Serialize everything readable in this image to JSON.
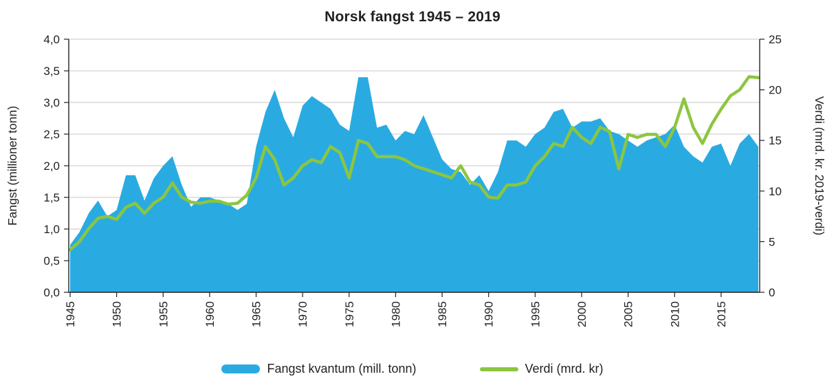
{
  "title": "Norsk fangst 1945 – 2019",
  "axes": {
    "left_label": "Fangst (millioner tonn)",
    "right_label": "Verdi (mrd. kr. 2019-verdi)"
  },
  "legend": {
    "fangst_label": "Fangst kvantum (mill. tonn)",
    "verdi_label": "Verdi (mrd. kr)"
  },
  "colors": {
    "area": "#29ABE2",
    "line": "#8CC63F",
    "grid": "#c7c7c7",
    "axis": "#231f20",
    "text": "#231f20"
  },
  "chart_data": {
    "type": "combo-area-line",
    "title": "Norsk fangst 1945 – 2019",
    "xlabel": "",
    "ylabel_left": "Fangst (millioner tonn)",
    "ylabel_right": "Verdi (mrd. kr. 2019-verdi)",
    "ylim_left": [
      0,
      4
    ],
    "ylim_right": [
      0,
      25
    ],
    "grid": true,
    "legend_position": "bottom",
    "x": [
      1945,
      1946,
      1947,
      1948,
      1949,
      1950,
      1951,
      1952,
      1953,
      1954,
      1955,
      1956,
      1957,
      1958,
      1959,
      1960,
      1961,
      1962,
      1963,
      1964,
      1965,
      1966,
      1967,
      1968,
      1969,
      1970,
      1971,
      1972,
      1973,
      1974,
      1975,
      1976,
      1977,
      1978,
      1979,
      1980,
      1981,
      1982,
      1983,
      1984,
      1985,
      1986,
      1987,
      1988,
      1989,
      1990,
      1991,
      1992,
      1993,
      1994,
      1995,
      1996,
      1997,
      1998,
      1999,
      2000,
      2001,
      2002,
      2003,
      2004,
      2005,
      2006,
      2007,
      2008,
      2009,
      2010,
      2011,
      2012,
      2013,
      2014,
      2015,
      2016,
      2017,
      2018,
      2019
    ],
    "xticks": [
      1945,
      1950,
      1955,
      1960,
      1965,
      1970,
      1975,
      1980,
      1985,
      1990,
      1995,
      2000,
      2005,
      2010,
      2015
    ],
    "yticks_left": {
      "values": [
        0,
        0.5,
        1,
        1.5,
        2,
        2.5,
        3,
        3.5,
        4
      ],
      "labels": [
        "0,0",
        "0,5",
        "1,0",
        "1,5",
        "2,0",
        "2,5",
        "3,0",
        "3,5",
        "4,0"
      ]
    },
    "yticks_right": {
      "values": [
        0,
        5,
        10,
        15,
        20,
        25
      ],
      "labels": [
        "0",
        "5",
        "10",
        "15",
        "20",
        "25"
      ]
    },
    "series": [
      {
        "name": "Fangst kvantum (mill. tonn)",
        "type": "area",
        "axis": "left",
        "values": [
          0.75,
          0.95,
          1.25,
          1.45,
          1.2,
          1.3,
          1.85,
          1.85,
          1.45,
          1.8,
          2.0,
          2.15,
          1.7,
          1.35,
          1.5,
          1.5,
          1.45,
          1.4,
          1.3,
          1.4,
          2.3,
          2.85,
          3.2,
          2.75,
          2.45,
          2.95,
          3.1,
          3.0,
          2.9,
          2.65,
          2.55,
          3.4,
          3.4,
          2.6,
          2.65,
          2.4,
          2.55,
          2.5,
          2.8,
          2.45,
          2.1,
          1.95,
          1.9,
          1.7,
          1.85,
          1.6,
          1.9,
          2.4,
          2.4,
          2.3,
          2.5,
          2.6,
          2.85,
          2.9,
          2.6,
          2.7,
          2.7,
          2.75,
          2.55,
          2.5,
          2.4,
          2.3,
          2.4,
          2.45,
          2.5,
          2.65,
          2.3,
          2.15,
          2.05,
          2.3,
          2.35,
          2.0,
          2.35,
          2.5,
          2.3
        ]
      },
      {
        "name": "Verdi (mrd. kr)",
        "type": "line",
        "axis": "right",
        "values": [
          4.2,
          5.0,
          6.3,
          7.3,
          7.5,
          7.2,
          8.4,
          8.8,
          7.8,
          8.8,
          9.4,
          10.8,
          9.4,
          8.9,
          8.8,
          9.0,
          9.0,
          8.7,
          8.8,
          9.6,
          11.3,
          14.4,
          13.1,
          10.6,
          11.3,
          12.5,
          13.1,
          12.8,
          14.4,
          13.8,
          11.3,
          15.0,
          14.7,
          13.4,
          13.4,
          13.4,
          13.1,
          12.5,
          12.2,
          11.9,
          11.6,
          11.3,
          12.5,
          10.9,
          10.6,
          9.4,
          9.3,
          10.6,
          10.6,
          10.9,
          12.5,
          13.4,
          14.7,
          14.4,
          16.3,
          15.3,
          14.7,
          16.3,
          15.9,
          12.2,
          15.6,
          15.3,
          15.6,
          15.6,
          14.4,
          16.3,
          19.1,
          16.3,
          14.7,
          16.6,
          18.1,
          19.4,
          20.0,
          21.3,
          21.2
        ]
      }
    ]
  }
}
